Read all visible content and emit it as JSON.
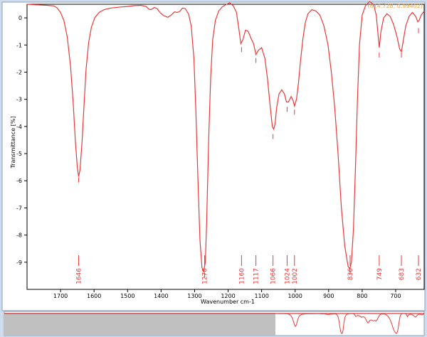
{
  "chart_data": {
    "type": "line",
    "xlabel": "Wavenumber cm-1",
    "ylabel": "Transmittance [%]",
    "x_reversed": true,
    "xlim": [
      1800,
      615
    ],
    "ylim": [
      -10,
      0.5
    ],
    "x_ticks": [
      1700,
      1600,
      1500,
      1400,
      1300,
      1200,
      1100,
      1000,
      900,
      800,
      700
    ],
    "y_ticks": [
      0,
      -1,
      -2,
      -3,
      -4,
      -5,
      -6,
      -7,
      -8,
      -9
    ],
    "y_tick_labels": [
      "0",
      "-1",
      "-2",
      "-3",
      "-4",
      "-5",
      "-6",
      "-7",
      "-8",
      "-9"
    ],
    "cursor_readout": "(814.728, 0.99402)",
    "peak_labels": [
      "1646",
      "1270",
      "1160",
      "1117",
      "1066",
      "1024",
      "1002",
      "836",
      "749",
      "683",
      "632"
    ],
    "peaks": [
      {
        "x": 1646,
        "y": -5.8
      },
      {
        "x": 1270,
        "y": -9.3
      },
      {
        "x": 1160,
        "y": -1.0
      },
      {
        "x": 1117,
        "y": -1.4
      },
      {
        "x": 1066,
        "y": -4.2
      },
      {
        "x": 1024,
        "y": -3.2
      },
      {
        "x": 1002,
        "y": -3.3
      },
      {
        "x": 836,
        "y": -9.2
      },
      {
        "x": 749,
        "y": -1.2
      },
      {
        "x": 683,
        "y": -1.2
      },
      {
        "x": 632,
        "y": -0.3
      }
    ],
    "series": [
      {
        "color": "#e83a3a",
        "points": [
          [
            1800,
            0.5
          ],
          [
            1770,
            0.48
          ],
          [
            1740,
            0.46
          ],
          [
            1720,
            0.44
          ],
          [
            1710,
            0.36
          ],
          [
            1700,
            0.2
          ],
          [
            1690,
            -0.1
          ],
          [
            1680,
            -0.7
          ],
          [
            1670,
            -1.8
          ],
          [
            1662,
            -3.2
          ],
          [
            1656,
            -4.5
          ],
          [
            1650,
            -5.5
          ],
          [
            1646,
            -5.85
          ],
          [
            1642,
            -5.6
          ],
          [
            1636,
            -4.6
          ],
          [
            1630,
            -3.2
          ],
          [
            1624,
            -1.9
          ],
          [
            1616,
            -0.9
          ],
          [
            1608,
            -0.35
          ],
          [
            1598,
            0.0
          ],
          [
            1585,
            0.2
          ],
          [
            1570,
            0.3
          ],
          [
            1550,
            0.36
          ],
          [
            1520,
            0.4
          ],
          [
            1500,
            0.42
          ],
          [
            1480,
            0.45
          ],
          [
            1460,
            0.46
          ],
          [
            1445,
            0.42
          ],
          [
            1436,
            0.32
          ],
          [
            1430,
            0.3
          ],
          [
            1420,
            0.38
          ],
          [
            1412,
            0.34
          ],
          [
            1402,
            0.18
          ],
          [
            1392,
            0.08
          ],
          [
            1380,
            0.02
          ],
          [
            1370,
            0.1
          ],
          [
            1360,
            0.22
          ],
          [
            1352,
            0.2
          ],
          [
            1344,
            0.24
          ],
          [
            1336,
            0.36
          ],
          [
            1328,
            0.34
          ],
          [
            1318,
            0.14
          ],
          [
            1310,
            -0.3
          ],
          [
            1302,
            -1.5
          ],
          [
            1296,
            -3.5
          ],
          [
            1290,
            -6.0
          ],
          [
            1284,
            -8.2
          ],
          [
            1278,
            -9.2
          ],
          [
            1273,
            -9.35
          ],
          [
            1268,
            -9.0
          ],
          [
            1264,
            -7.5
          ],
          [
            1258,
            -4.5
          ],
          [
            1252,
            -2.2
          ],
          [
            1246,
            -0.8
          ],
          [
            1238,
            -0.1
          ],
          [
            1228,
            0.25
          ],
          [
            1218,
            0.4
          ],
          [
            1205,
            0.5
          ],
          [
            1195,
            0.55
          ],
          [
            1185,
            0.45
          ],
          [
            1175,
            0.2
          ],
          [
            1168,
            -0.4
          ],
          [
            1162,
            -0.95
          ],
          [
            1156,
            -0.8
          ],
          [
            1148,
            -0.45
          ],
          [
            1140,
            -0.5
          ],
          [
            1132,
            -0.75
          ],
          [
            1124,
            -0.95
          ],
          [
            1117,
            -1.35
          ],
          [
            1110,
            -1.2
          ],
          [
            1100,
            -1.1
          ],
          [
            1090,
            -1.5
          ],
          [
            1082,
            -2.3
          ],
          [
            1075,
            -3.2
          ],
          [
            1068,
            -4.0
          ],
          [
            1064,
            -4.1
          ],
          [
            1060,
            -3.9
          ],
          [
            1055,
            -3.3
          ],
          [
            1048,
            -2.8
          ],
          [
            1040,
            -2.65
          ],
          [
            1032,
            -2.8
          ],
          [
            1026,
            -3.1
          ],
          [
            1020,
            -3.1
          ],
          [
            1012,
            -2.9
          ],
          [
            1006,
            -3.05
          ],
          [
            1002,
            -3.25
          ],
          [
            996,
            -3.0
          ],
          [
            990,
            -2.4
          ],
          [
            984,
            -1.6
          ],
          [
            977,
            -0.8
          ],
          [
            970,
            -0.2
          ],
          [
            962,
            0.15
          ],
          [
            950,
            0.3
          ],
          [
            938,
            0.25
          ],
          [
            926,
            0.1
          ],
          [
            914,
            -0.3
          ],
          [
            902,
            -1.0
          ],
          [
            892,
            -2.0
          ],
          [
            882,
            -3.3
          ],
          [
            872,
            -5.0
          ],
          [
            862,
            -7.0
          ],
          [
            852,
            -8.4
          ],
          [
            842,
            -9.15
          ],
          [
            837,
            -9.25
          ],
          [
            832,
            -9.0
          ],
          [
            826,
            -7.8
          ],
          [
            820,
            -5.5
          ],
          [
            814,
            -3.0
          ],
          [
            808,
            -1.0
          ],
          [
            800,
            0.1
          ],
          [
            790,
            0.45
          ],
          [
            778,
            0.6
          ],
          [
            766,
            0.5
          ],
          [
            758,
            0.1
          ],
          [
            752,
            -0.7
          ],
          [
            749,
            -1.1
          ],
          [
            744,
            -0.5
          ],
          [
            736,
            0.0
          ],
          [
            726,
            0.15
          ],
          [
            716,
            0.05
          ],
          [
            706,
            -0.25
          ],
          [
            696,
            -0.7
          ],
          [
            688,
            -1.15
          ],
          [
            683,
            -1.25
          ],
          [
            678,
            -0.9
          ],
          [
            670,
            -0.3
          ],
          [
            660,
            0.05
          ],
          [
            650,
            0.2
          ],
          [
            640,
            0.05
          ],
          [
            634,
            -0.15
          ],
          [
            630,
            -0.1
          ],
          [
            624,
            0.1
          ],
          [
            615,
            0.25
          ]
        ]
      }
    ]
  }
}
